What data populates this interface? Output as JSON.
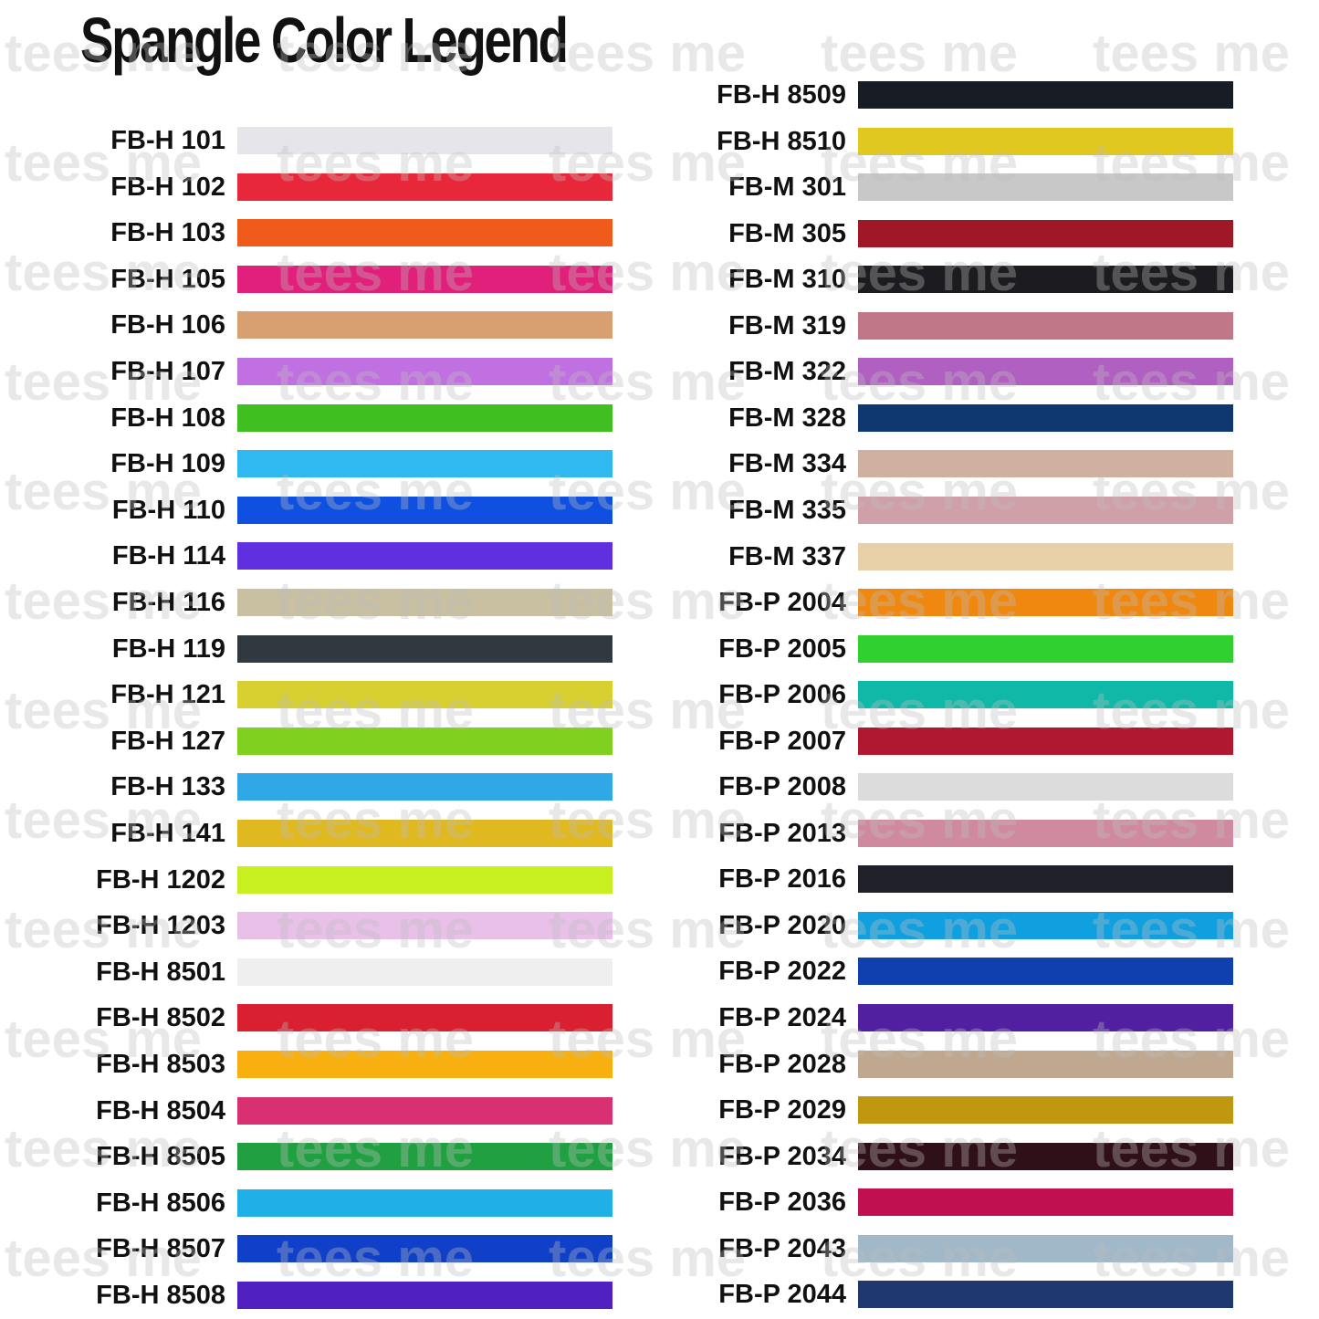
{
  "title": "Spangle Color Legend",
  "watermark": "tees me",
  "columns": [
    {
      "items": [
        {
          "label": "FB-H 101",
          "color": "#e6e6ea"
        },
        {
          "label": "FB-H 102",
          "color": "#e8283a"
        },
        {
          "label": "FB-H 103",
          "color": "#f05a1a"
        },
        {
          "label": "FB-H 105",
          "color": "#e0207a"
        },
        {
          "label": "FB-H 106",
          "color": "#d8a070"
        },
        {
          "label": "FB-H 107",
          "color": "#c070e0"
        },
        {
          "label": "FB-H 108",
          "color": "#40c020"
        },
        {
          "label": "FB-H 109",
          "color": "#30b8f0"
        },
        {
          "label": "FB-H 110",
          "color": "#1050e0"
        },
        {
          "label": "FB-H 114",
          "color": "#6030e0"
        },
        {
          "label": "FB-H 116",
          "color": "#c8c0a0"
        },
        {
          "label": "FB-H 119",
          "color": "#303840"
        },
        {
          "label": "FB-H 121",
          "color": "#d8d030"
        },
        {
          "label": "FB-H 127",
          "color": "#80d020"
        },
        {
          "label": "FB-H 133",
          "color": "#30a8e8"
        },
        {
          "label": "FB-H 141",
          "color": "#e0b820"
        },
        {
          "label": "FB-H 1202",
          "color": "#c8f020"
        },
        {
          "label": "FB-H 1203",
          "color": "#e8c0e8"
        },
        {
          "label": "FB-H 8501",
          "color": "#efefef"
        },
        {
          "label": "FB-H 8502",
          "color": "#d82030"
        },
        {
          "label": "FB-H 8503",
          "color": "#f8b010"
        },
        {
          "label": "FB-H 8504",
          "color": "#d83070"
        },
        {
          "label": "FB-H 8505",
          "color": "#20a040"
        },
        {
          "label": "FB-H 8506",
          "color": "#20b0e8"
        },
        {
          "label": "FB-H 8507",
          "color": "#1040c8"
        },
        {
          "label": "FB-H 8508",
          "color": "#5020c0"
        }
      ]
    },
    {
      "items": [
        {
          "label": "FB-H 8509",
          "color": "#181c24"
        },
        {
          "label": "FB-H 8510",
          "color": "#e0c820"
        },
        {
          "label": "FB-M 301",
          "color": "#c8c8c8"
        },
        {
          "label": "FB-M 305",
          "color": "#a01828"
        },
        {
          "label": "FB-M 310",
          "color": "#1c1c20"
        },
        {
          "label": "FB-M 319",
          "color": "#c07888"
        },
        {
          "label": "FB-M 322",
          "color": "#b060c0"
        },
        {
          "label": "FB-M 328",
          "color": "#103870"
        },
        {
          "label": "FB-M 334",
          "color": "#d0b0a0"
        },
        {
          "label": "FB-M 335",
          "color": "#d0a0a8"
        },
        {
          "label": "FB-M 337",
          "color": "#e8d0a8"
        },
        {
          "label": "FB-P 2004",
          "color": "#f08810"
        },
        {
          "label": "FB-P 2005",
          "color": "#30d030"
        },
        {
          "label": "FB-P 2006",
          "color": "#10b8a8"
        },
        {
          "label": "FB-P 2007",
          "color": "#b01830"
        },
        {
          "label": "FB-P 2008",
          "color": "#dcdcdc"
        },
        {
          "label": "FB-P 2013",
          "color": "#d08aa0"
        },
        {
          "label": "FB-P 2016",
          "color": "#202028"
        },
        {
          "label": "FB-P 2020",
          "color": "#10a0e0"
        },
        {
          "label": "FB-P 2022",
          "color": "#1040b0"
        },
        {
          "label": "FB-P 2024",
          "color": "#5020a0"
        },
        {
          "label": "FB-P 2028",
          "color": "#c0a890"
        },
        {
          "label": "FB-P 2029",
          "color": "#c09810"
        },
        {
          "label": "FB-P 2034",
          "color": "#301018"
        },
        {
          "label": "FB-P 2036",
          "color": "#c01050"
        },
        {
          "label": "FB-P 2043",
          "color": "#a0b8c8"
        },
        {
          "label": "FB-P 2044",
          "color": "#203870"
        }
      ]
    }
  ]
}
